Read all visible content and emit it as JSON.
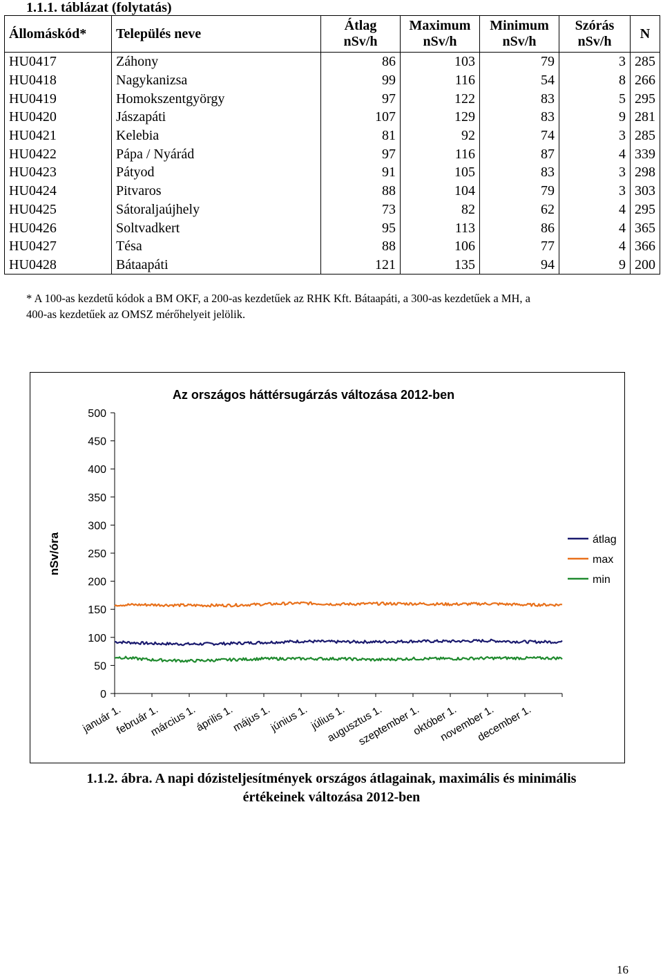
{
  "table": {
    "caption": "1.1.1. táblázat (folytatás)",
    "headers": {
      "code": "Állomáskód*",
      "name": "Település neve",
      "avg": [
        "Átlag",
        "nSv/h"
      ],
      "max": [
        "Maximum",
        "nSv/h"
      ],
      "min": [
        "Minimum",
        "nSv/h"
      ],
      "std": [
        "Szórás",
        "nSv/h"
      ],
      "n": "N"
    },
    "rows": [
      {
        "code": "HU0417",
        "name": "Záhony",
        "avg": "86",
        "max": "103",
        "min": "79",
        "std": "3",
        "n": "285"
      },
      {
        "code": "HU0418",
        "name": "Nagykanizsa",
        "avg": "99",
        "max": "116",
        "min": "54",
        "std": "8",
        "n": "266"
      },
      {
        "code": "HU0419",
        "name": "Homokszentgyörgy",
        "avg": "97",
        "max": "122",
        "min": "83",
        "std": "5",
        "n": "295"
      },
      {
        "code": "HU0420",
        "name": "Jászapáti",
        "avg": "107",
        "max": "129",
        "min": "83",
        "std": "9",
        "n": "281"
      },
      {
        "code": "HU0421",
        "name": "Kelebia",
        "avg": "81",
        "max": "92",
        "min": "74",
        "std": "3",
        "n": "285"
      },
      {
        "code": "HU0422",
        "name": "Pápa / Nyárád",
        "avg": "97",
        "max": "116",
        "min": "87",
        "std": "4",
        "n": "339"
      },
      {
        "code": "HU0423",
        "name": "Pátyod",
        "avg": "91",
        "max": "105",
        "min": "83",
        "std": "3",
        "n": "298"
      },
      {
        "code": "HU0424",
        "name": "Pitvaros",
        "avg": "88",
        "max": "104",
        "min": "79",
        "std": "3",
        "n": "303"
      },
      {
        "code": "HU0425",
        "name": "Sátoraljaújhely",
        "avg": "73",
        "max": "82",
        "min": "62",
        "std": "4",
        "n": "295"
      },
      {
        "code": "HU0426",
        "name": "Soltvadkert",
        "avg": "95",
        "max": "113",
        "min": "86",
        "std": "4",
        "n": "365"
      },
      {
        "code": "HU0427",
        "name": "Tésa",
        "avg": "88",
        "max": "106",
        "min": "77",
        "std": "4",
        "n": "366"
      },
      {
        "code": "HU0428",
        "name": "Bátaapáti",
        "avg": "121",
        "max": "135",
        "min": "94",
        "std": "9",
        "n": "200"
      }
    ]
  },
  "note": {
    "line1": "* A 100-as kezdetű kódok a BM OKF, a 200-as kezdetűek az RHK Kft. Bátaapáti, a 300-as kezdetűek a MH, a",
    "line2": "400-as kezdetűek az OMSZ mérőhelyeit jelölik."
  },
  "chart_data": {
    "type": "line",
    "title": "Az országos háttérsugárzás változása 2012-ben",
    "ylabel": "nSv/óra",
    "xlabel": "",
    "ylim": [
      0,
      500
    ],
    "yticks": [
      "0",
      "50",
      "100",
      "150",
      "200",
      "250",
      "300",
      "350",
      "400",
      "450",
      "500"
    ],
    "categories": [
      "január 1.",
      "február 1.",
      "március 1.",
      "április 1.",
      "május 1.",
      "június 1.",
      "július 1.",
      "augusztus 1.",
      "szeptember 1.",
      "október 1.",
      "november 1.",
      "december 1."
    ],
    "grid": false,
    "legend_position": "right",
    "series": [
      {
        "name": "átlag",
        "color": "#1a1a6e",
        "values": [
          92,
          89,
          88,
          89,
          91,
          93,
          92,
          92,
          93,
          93,
          94,
          92
        ]
      },
      {
        "name": "max",
        "color": "#e8701a",
        "values": [
          158,
          158,
          157,
          157,
          159,
          161,
          159,
          160,
          160,
          159,
          160,
          158
        ]
      },
      {
        "name": "min",
        "color": "#1f8a2e",
        "values": [
          65,
          60,
          58,
          60,
          62,
          62,
          62,
          60,
          62,
          62,
          63,
          63
        ]
      }
    ]
  },
  "figure": {
    "caption_line1": "1.1.2. ábra. A napi dózisteljesítmények országos átlagainak, maximális és minimális",
    "caption_line2": "értékeinek változása 2012-ben"
  },
  "page": {
    "number": "16"
  }
}
